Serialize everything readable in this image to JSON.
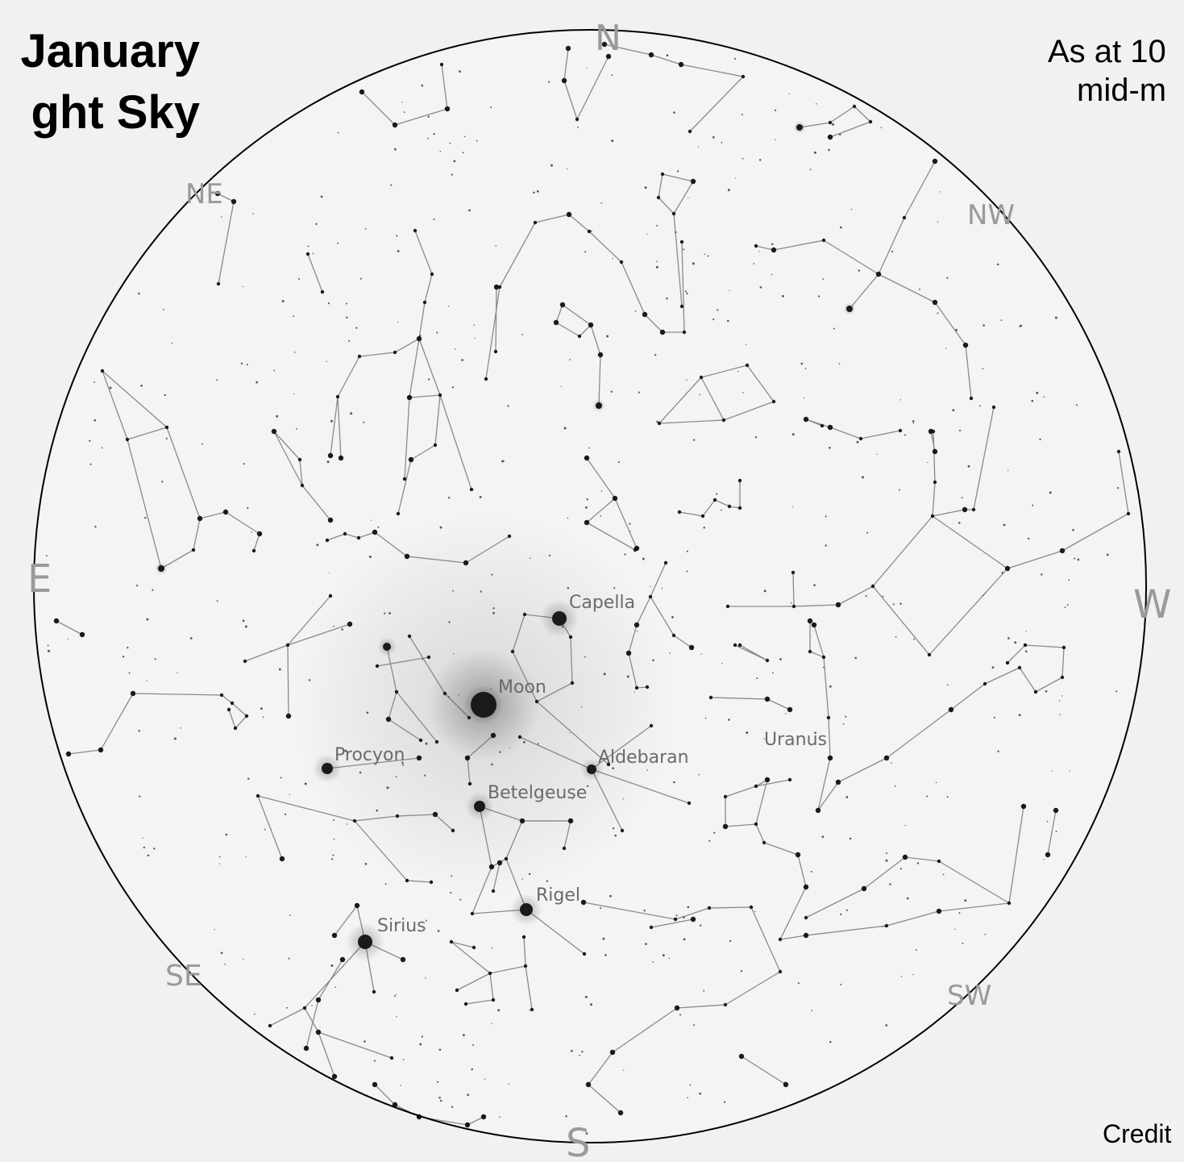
{
  "title": {
    "line1": "January",
    "line2": "ght Sky"
  },
  "note": {
    "line1": "As at 10",
    "line2": "mid-m"
  },
  "credit": "Credit",
  "compass": {
    "n": "N",
    "ne": "NE",
    "e": "E",
    "se": "SE",
    "s": "S",
    "sw": "SW",
    "w": "W",
    "nw": "NW"
  },
  "labels": {
    "capella": "Capella",
    "moon": "Moon",
    "procyon": "Procyon",
    "aldebaran": "Aldebaran",
    "uranus": "Uranus",
    "betelgeuse": "Betelgeuse",
    "rigel": "Rigel",
    "sirius": "Sirius"
  },
  "colors": {
    "sky": "#f4f4f4",
    "lines": "#8a8a8a",
    "stars": "#1a1a1a",
    "labels": "#6a6a6a"
  }
}
